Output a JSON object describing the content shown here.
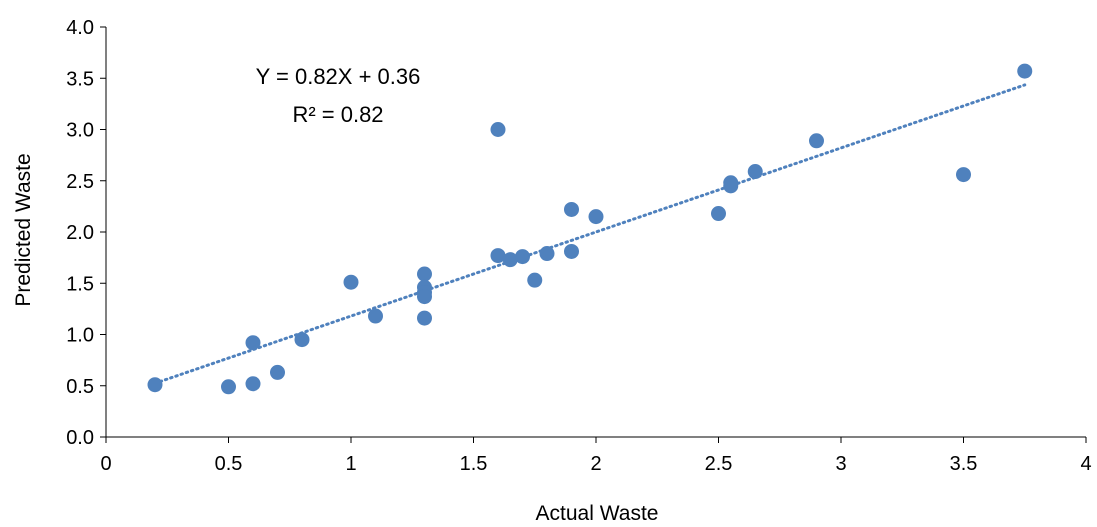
{
  "chart_data": {
    "type": "scatter",
    "title": "",
    "xlabel": "Actual Waste",
    "ylabel": "Predicted Waste",
    "xlim": [
      0,
      4
    ],
    "ylim": [
      0,
      4.0
    ],
    "x_ticks": [
      "0",
      "0.5",
      "1",
      "1.5",
      "2",
      "2.5",
      "3",
      "3.5",
      "4"
    ],
    "y_ticks": [
      "0.0",
      "0.5",
      "1.0",
      "1.5",
      "2.0",
      "2.5",
      "3.0",
      "3.5",
      "4.0"
    ],
    "grid": false,
    "legend": "none",
    "marker_color": "#4f81bd",
    "trendline_color": "#4f81bd",
    "trendline": {
      "slope": 0.82,
      "intercept": 0.36,
      "x_range": [
        0.2,
        3.75
      ],
      "style": "dotted"
    },
    "equation_label": "Y = 0.82X + 0.36",
    "r2_label": "R² = 0.82",
    "series": [
      {
        "points": [
          {
            "x": 0.2,
            "y": 0.51
          },
          {
            "x": 0.5,
            "y": 0.49
          },
          {
            "x": 0.6,
            "y": 0.92
          },
          {
            "x": 0.6,
            "y": 0.52
          },
          {
            "x": 0.7,
            "y": 0.63
          },
          {
            "x": 0.8,
            "y": 0.95
          },
          {
            "x": 1.0,
            "y": 1.51
          },
          {
            "x": 1.1,
            "y": 1.18
          },
          {
            "x": 1.3,
            "y": 1.59
          },
          {
            "x": 1.3,
            "y": 1.46
          },
          {
            "x": 1.3,
            "y": 1.41
          },
          {
            "x": 1.3,
            "y": 1.37
          },
          {
            "x": 1.3,
            "y": 1.16
          },
          {
            "x": 1.6,
            "y": 3.0
          },
          {
            "x": 1.6,
            "y": 1.77
          },
          {
            "x": 1.65,
            "y": 1.73
          },
          {
            "x": 1.7,
            "y": 1.76
          },
          {
            "x": 1.75,
            "y": 1.53
          },
          {
            "x": 1.8,
            "y": 1.79
          },
          {
            "x": 1.9,
            "y": 2.22
          },
          {
            "x": 1.9,
            "y": 1.81
          },
          {
            "x": 2.0,
            "y": 2.15
          },
          {
            "x": 2.5,
            "y": 2.18
          },
          {
            "x": 2.55,
            "y": 2.48
          },
          {
            "x": 2.55,
            "y": 2.45
          },
          {
            "x": 2.65,
            "y": 2.59
          },
          {
            "x": 2.9,
            "y": 2.89
          },
          {
            "x": 3.5,
            "y": 2.56
          },
          {
            "x": 3.75,
            "y": 3.57
          }
        ]
      }
    ]
  }
}
